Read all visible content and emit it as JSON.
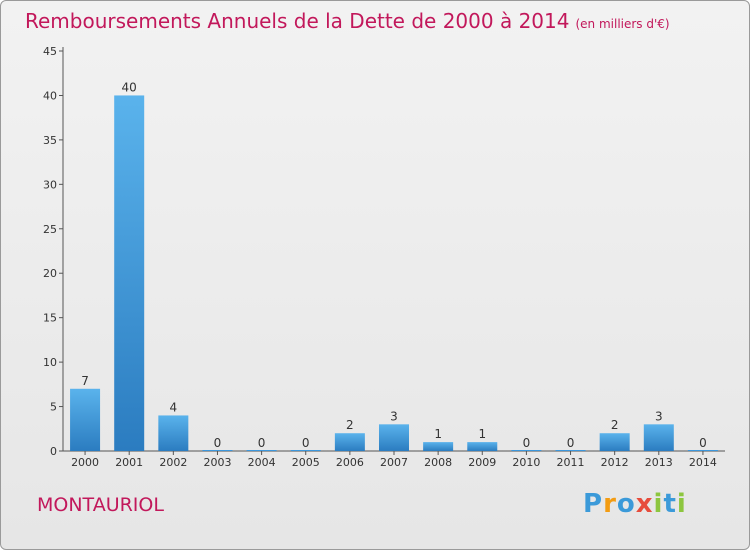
{
  "chart_data": {
    "type": "bar",
    "title": "Remboursements Annuels de la Dette de 2000 à 2014",
    "subtitle": "(en milliers d'€)",
    "categories": [
      "2000",
      "2001",
      "2002",
      "2003",
      "2004",
      "2005",
      "2006",
      "2007",
      "2008",
      "2009",
      "2010",
      "2011",
      "2012",
      "2013",
      "2014"
    ],
    "values": [
      7,
      40,
      4,
      0,
      0,
      0,
      2,
      3,
      1,
      1,
      0,
      0,
      2,
      3,
      0
    ],
    "ylim": [
      0,
      45
    ],
    "yticks": [
      0,
      5,
      10,
      15,
      20,
      25,
      30,
      35,
      40,
      45
    ],
    "xlabel": "",
    "ylabel": "",
    "grid": false,
    "colors": {
      "bar": "#3d97dc",
      "bar_highlight": "#2b7cc0",
      "title": "#c2185b"
    }
  },
  "place_name": "MONTAURIOL",
  "logo": {
    "letters": [
      "P",
      "r",
      "o",
      "x",
      "i",
      "t",
      "i"
    ],
    "colors": [
      "#3b9ad9",
      "#f39c12",
      "#3b9ad9",
      "#e74c3c",
      "#8dc63f",
      "#3b9ad9",
      "#8dc63f"
    ]
  }
}
